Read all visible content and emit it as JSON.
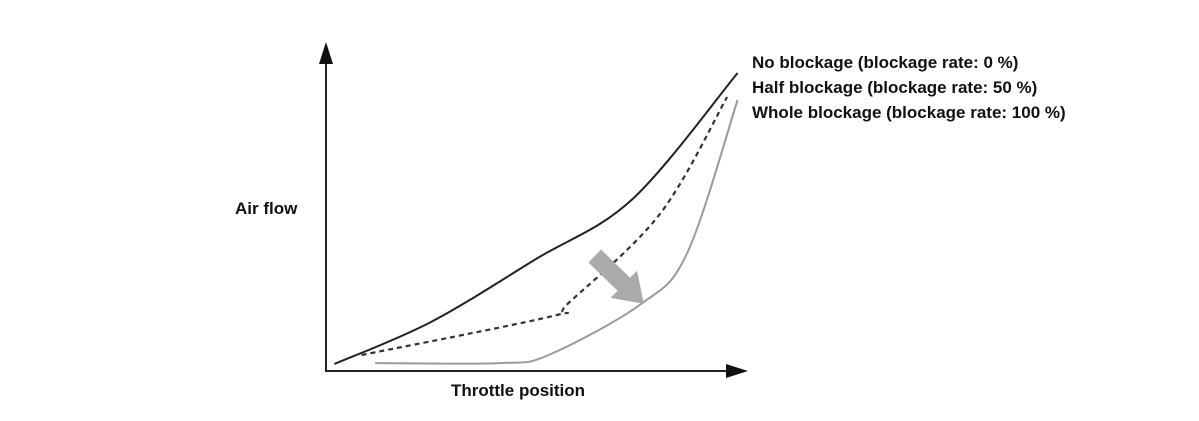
{
  "chart_data": {
    "type": "line",
    "title": "",
    "xlabel": "Throttle position",
    "ylabel": "Air flow",
    "xlim": [
      0,
      100
    ],
    "ylim": [
      0,
      100
    ],
    "grid": false,
    "ticks": false,
    "legend_placement": "top-right",
    "series": [
      {
        "name": "No blockage (blockage rate: 0 %)",
        "style": "solid",
        "color": "#222222",
        "points": [
          [
            2,
            2
          ],
          [
            25,
            16
          ],
          [
            50,
            37
          ],
          [
            73,
            57
          ],
          [
            98,
            99
          ]
        ]
      },
      {
        "name": "Half blockage (blockage rate: 50 %)",
        "style": "dashed",
        "color": "#333333",
        "points": [
          [
            8.5,
            5
          ],
          [
            54,
            18
          ],
          [
            57.5,
            22
          ],
          [
            79.5,
            52
          ],
          [
            95.5,
            91
          ]
        ]
      },
      {
        "name": "Whole blockage (blockage rate: 100 %)",
        "style": "solid",
        "color": "#9a9a9a",
        "points": [
          [
            11.7,
            2.3
          ],
          [
            41.4,
            2.3
          ],
          [
            53,
            5
          ],
          [
            75,
            22
          ],
          [
            86,
            39
          ],
          [
            98,
            90
          ]
        ]
      }
    ],
    "annotation_arrow": {
      "from": [
        64,
        38
      ],
      "to": [
        75,
        23
      ],
      "color": "#aaaaaa",
      "meaning": "increasing blockage"
    }
  }
}
